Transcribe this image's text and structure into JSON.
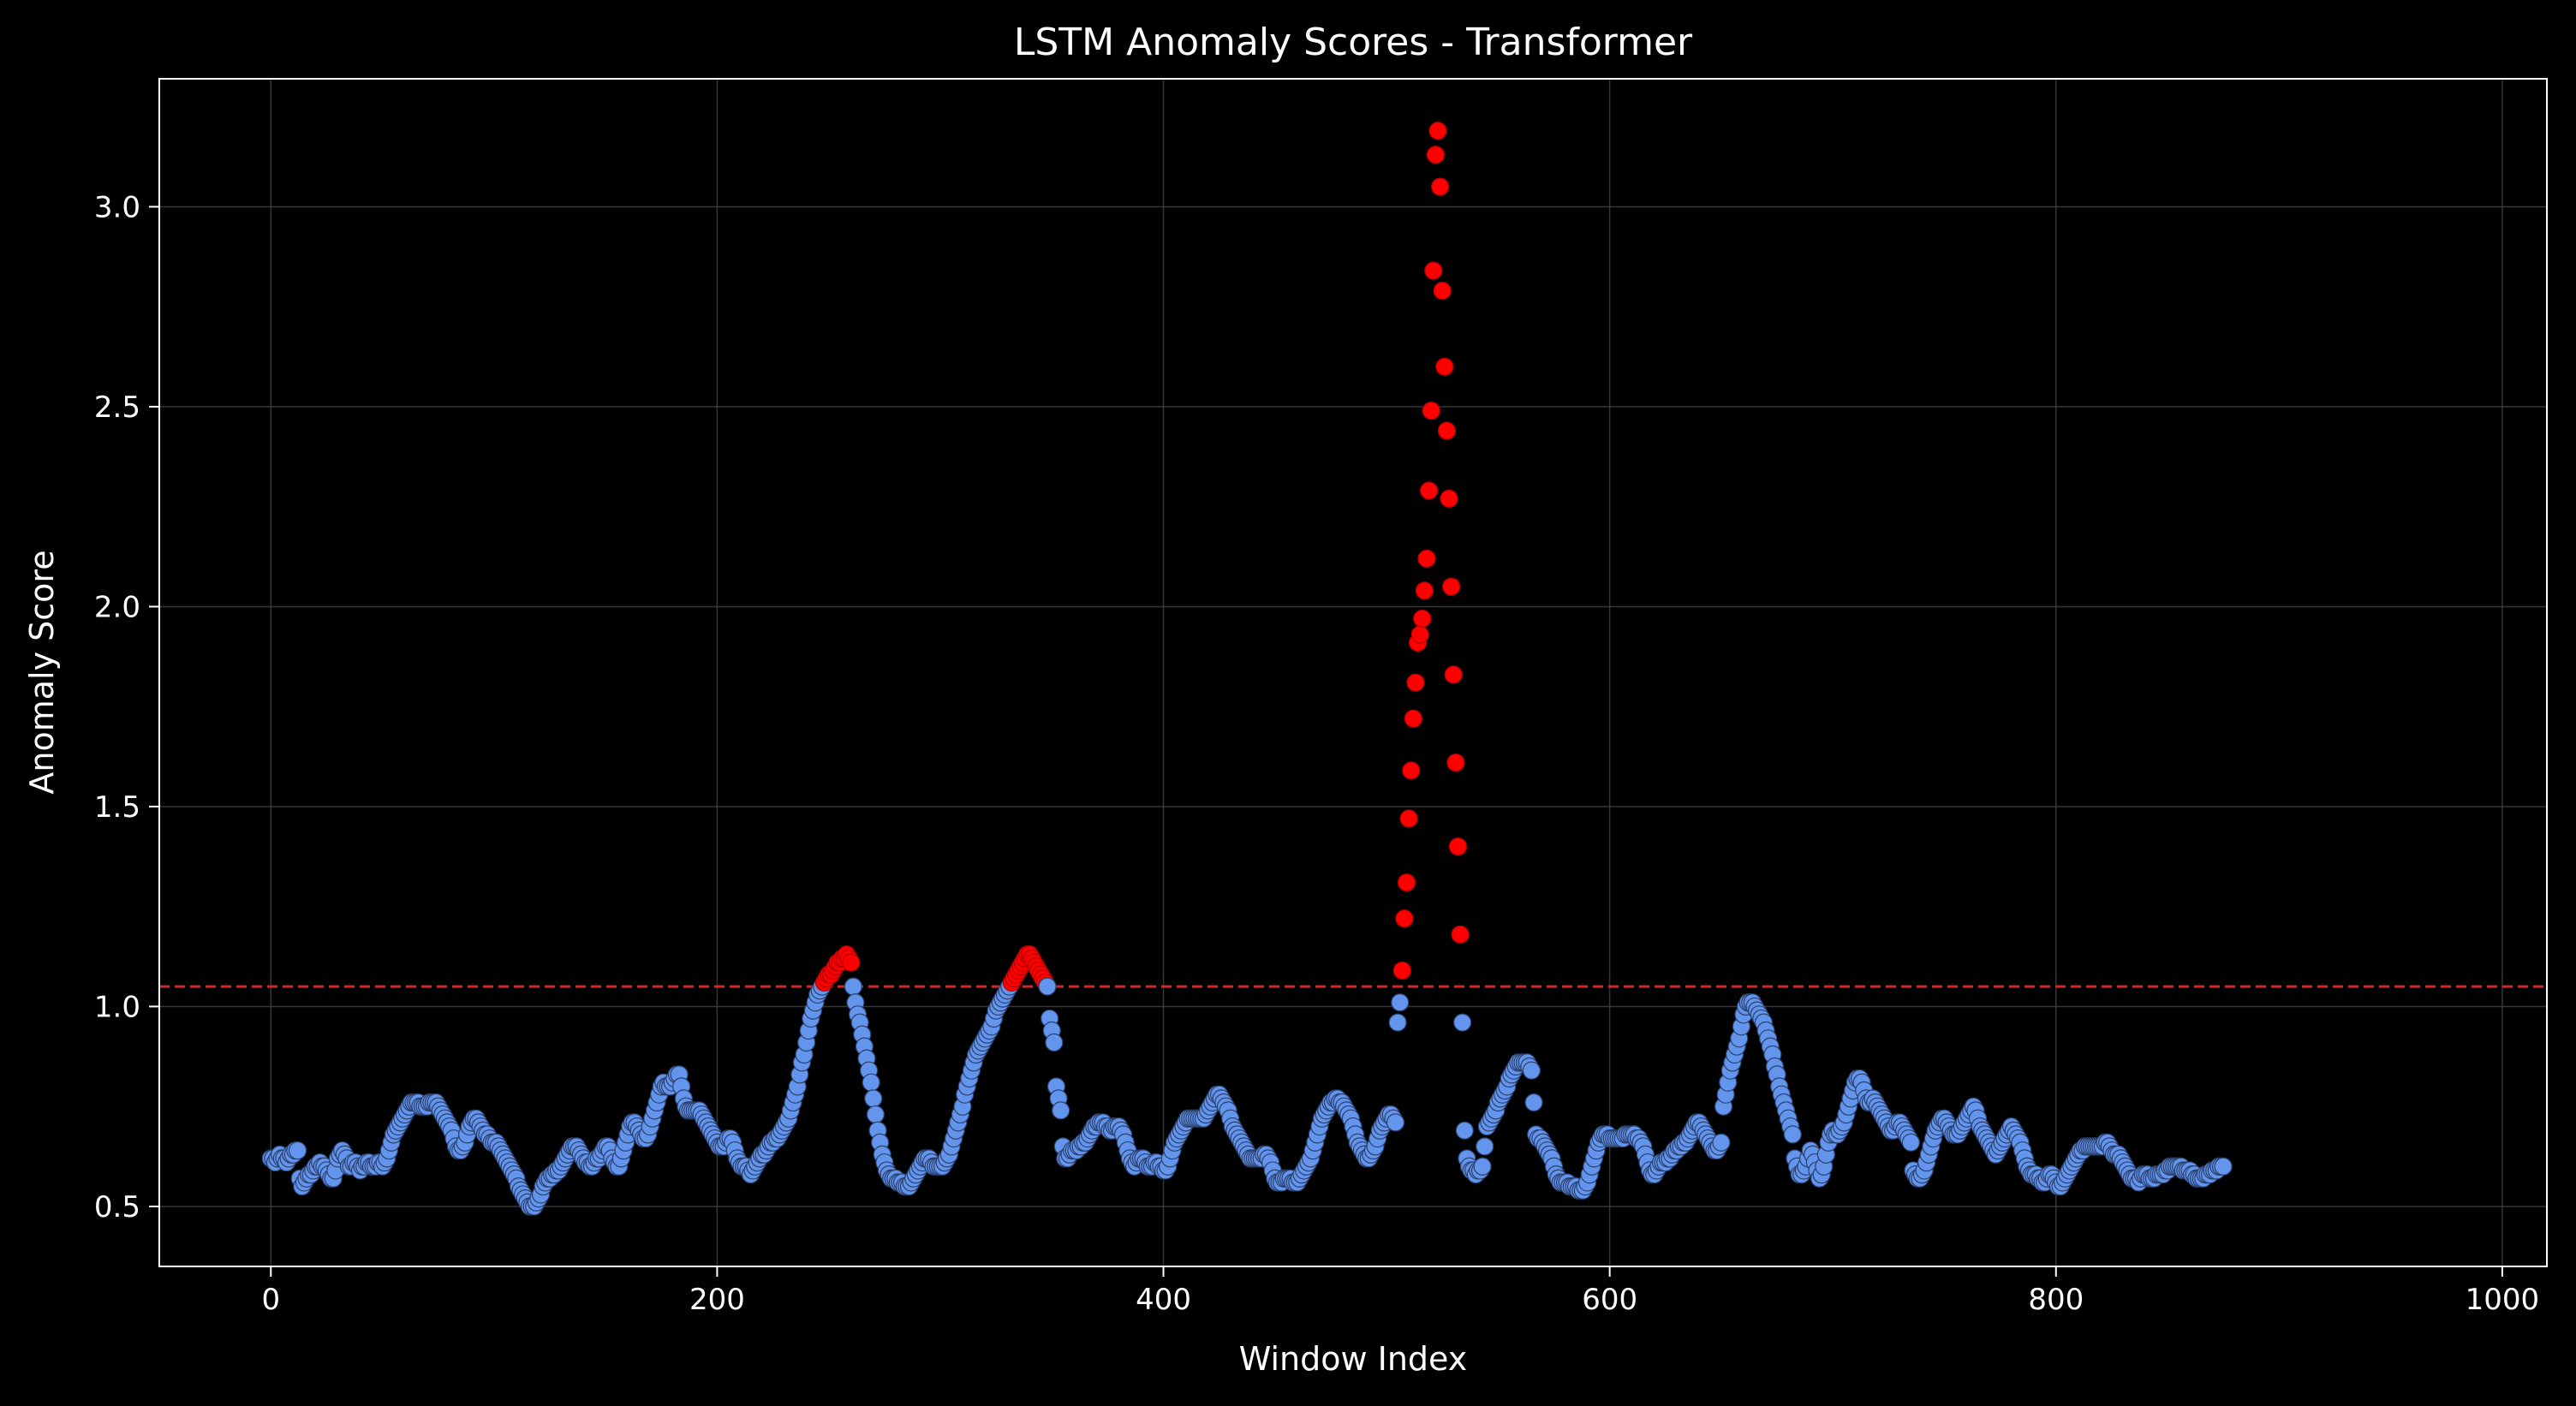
{
  "chart_data": {
    "type": "scatter",
    "title": "LSTM Anomaly Scores - Transformer",
    "xlabel": "Window Index",
    "ylabel": "Anomaly Score",
    "xlim": [
      -50,
      1020
    ],
    "ylim": [
      0.35,
      3.32
    ],
    "x_ticks": [
      0,
      200,
      400,
      600,
      800,
      1000
    ],
    "y_ticks": [
      0.5,
      1.0,
      1.5,
      2.0,
      2.5,
      3.0
    ],
    "grid": true,
    "threshold": 1.05,
    "colors": {
      "background": "#000000",
      "normal": "#6495ed",
      "anomaly": "#ff0000",
      "threshold_line": "#d62728",
      "axes": "#ffffff",
      "grid": "#444444"
    },
    "series": [
      {
        "values": [
          0.62,
          0.62,
          0.61,
          0.62,
          0.63,
          0.62,
          0.62,
          0.61,
          0.62,
          0.63,
          0.63,
          0.64,
          0.64,
          0.57,
          0.55,
          0.56,
          0.57,
          0.58,
          0.58,
          0.59,
          0.6,
          0.6,
          0.61,
          0.6,
          0.6,
          0.59,
          0.58,
          0.57,
          0.57,
          0.59,
          0.62,
          0.63,
          0.64,
          0.63,
          0.62,
          0.6,
          0.6,
          0.61,
          0.61,
          0.6,
          0.59,
          0.6,
          0.6,
          0.61,
          0.61,
          0.6,
          0.6,
          0.6,
          0.61,
          0.61,
          0.6,
          0.61,
          0.62,
          0.64,
          0.66,
          0.68,
          0.69,
          0.7,
          0.71,
          0.72,
          0.73,
          0.74,
          0.75,
          0.76,
          0.76,
          0.76,
          0.76,
          0.75,
          0.75,
          0.75,
          0.75,
          0.76,
          0.76,
          0.76,
          0.76,
          0.75,
          0.74,
          0.73,
          0.72,
          0.71,
          0.7,
          0.69,
          0.67,
          0.65,
          0.64,
          0.64,
          0.65,
          0.66,
          0.68,
          0.7,
          0.71,
          0.72,
          0.72,
          0.71,
          0.7,
          0.69,
          0.68,
          0.68,
          0.67,
          0.66,
          0.66,
          0.66,
          0.65,
          0.64,
          0.63,
          0.62,
          0.61,
          0.6,
          0.59,
          0.58,
          0.57,
          0.55,
          0.54,
          0.53,
          0.52,
          0.51,
          0.5,
          0.5,
          0.5,
          0.51,
          0.52,
          0.53,
          0.55,
          0.56,
          0.57,
          0.57,
          0.58,
          0.58,
          0.59,
          0.59,
          0.6,
          0.61,
          0.62,
          0.63,
          0.64,
          0.65,
          0.65,
          0.65,
          0.64,
          0.63,
          0.62,
          0.61,
          0.61,
          0.6,
          0.6,
          0.61,
          0.62,
          0.62,
          0.63,
          0.64,
          0.65,
          0.65,
          0.64,
          0.62,
          0.61,
          0.6,
          0.6,
          0.62,
          0.64,
          0.66,
          0.68,
          0.7,
          0.71,
          0.71,
          0.7,
          0.69,
          0.68,
          0.67,
          0.67,
          0.68,
          0.7,
          0.72,
          0.74,
          0.76,
          0.78,
          0.8,
          0.81,
          0.8,
          0.8,
          0.8,
          0.81,
          0.82,
          0.83,
          0.83,
          0.8,
          0.77,
          0.75,
          0.74,
          0.74,
          0.74,
          0.74,
          0.74,
          0.74,
          0.73,
          0.72,
          0.71,
          0.7,
          0.69,
          0.68,
          0.67,
          0.66,
          0.65,
          0.65,
          0.65,
          0.66,
          0.67,
          0.67,
          0.66,
          0.64,
          0.62,
          0.61,
          0.6,
          0.6,
          0.6,
          0.59,
          0.58,
          0.59,
          0.6,
          0.61,
          0.62,
          0.63,
          0.63,
          0.64,
          0.65,
          0.66,
          0.66,
          0.67,
          0.67,
          0.68,
          0.69,
          0.7,
          0.71,
          0.72,
          0.74,
          0.76,
          0.78,
          0.8,
          0.83,
          0.86,
          0.88,
          0.91,
          0.94,
          0.97,
          0.99,
          1.01,
          1.03,
          1.04,
          1.05,
          1.06,
          1.07,
          1.08,
          1.08,
          1.09,
          1.1,
          1.11,
          1.11,
          1.12,
          1.12,
          1.13,
          1.12,
          1.11,
          1.05,
          1.01,
          0.98,
          0.96,
          0.93,
          0.9,
          0.87,
          0.84,
          0.81,
          0.77,
          0.73,
          0.69,
          0.66,
          0.63,
          0.61,
          0.59,
          0.58,
          0.57,
          0.57,
          0.57,
          0.56,
          0.56,
          0.56,
          0.55,
          0.55,
          0.55,
          0.56,
          0.57,
          0.58,
          0.59,
          0.6,
          0.61,
          0.62,
          0.62,
          0.62,
          0.61,
          0.6,
          0.6,
          0.6,
          0.6,
          0.6,
          0.61,
          0.62,
          0.63,
          0.65,
          0.67,
          0.69,
          0.71,
          0.73,
          0.75,
          0.78,
          0.8,
          0.82,
          0.84,
          0.86,
          0.88,
          0.89,
          0.9,
          0.91,
          0.92,
          0.93,
          0.94,
          0.95,
          0.97,
          0.99,
          1.0,
          1.01,
          1.02,
          1.03,
          1.04,
          1.05,
          1.06,
          1.07,
          1.08,
          1.09,
          1.1,
          1.11,
          1.12,
          1.13,
          1.13,
          1.12,
          1.11,
          1.1,
          1.09,
          1.08,
          1.07,
          1.06,
          1.05,
          0.97,
          0.94,
          0.91,
          0.8,
          0.77,
          0.74,
          0.65,
          0.62,
          0.62,
          0.63,
          0.64,
          0.64,
          0.64,
          0.65,
          0.65,
          0.66,
          0.66,
          0.67,
          0.68,
          0.69,
          0.7,
          0.7,
          0.71,
          0.71,
          0.71,
          0.7,
          0.7,
          0.69,
          0.69,
          0.7,
          0.7,
          0.7,
          0.69,
          0.68,
          0.66,
          0.64,
          0.62,
          0.61,
          0.6,
          0.61,
          0.62,
          0.62,
          0.62,
          0.61,
          0.6,
          0.6,
          0.6,
          0.61,
          0.61,
          0.6,
          0.6,
          0.59,
          0.59,
          0.6,
          0.62,
          0.64,
          0.66,
          0.67,
          0.68,
          0.69,
          0.7,
          0.71,
          0.72,
          0.72,
          0.72,
          0.72,
          0.72,
          0.72,
          0.72,
          0.72,
          0.73,
          0.74,
          0.75,
          0.76,
          0.77,
          0.78,
          0.78,
          0.77,
          0.76,
          0.75,
          0.74,
          0.72,
          0.7,
          0.69,
          0.68,
          0.67,
          0.66,
          0.65,
          0.64,
          0.63,
          0.62,
          0.62,
          0.62,
          0.62,
          0.62,
          0.62,
          0.63,
          0.63,
          0.62,
          0.61,
          0.59,
          0.57,
          0.56,
          0.56,
          0.56,
          0.57,
          0.57,
          0.57,
          0.57,
          0.56,
          0.56,
          0.56,
          0.57,
          0.58,
          0.59,
          0.6,
          0.61,
          0.62,
          0.64,
          0.66,
          0.68,
          0.7,
          0.72,
          0.73,
          0.74,
          0.75,
          0.76,
          0.76,
          0.77,
          0.77,
          0.76,
          0.76,
          0.75,
          0.74,
          0.73,
          0.72,
          0.7,
          0.68,
          0.66,
          0.65,
          0.64,
          0.63,
          0.62,
          0.62,
          0.63,
          0.64,
          0.65,
          0.67,
          0.69,
          0.7,
          0.71,
          0.72,
          0.73,
          0.73,
          0.72,
          0.71,
          0.96,
          1.01,
          1.09,
          1.22,
          1.31,
          1.47,
          1.59,
          1.72,
          1.81,
          1.91,
          1.93,
          1.97,
          2.04,
          2.12,
          2.29,
          2.49,
          2.84,
          3.13,
          3.19,
          3.05,
          2.79,
          2.6,
          2.44,
          2.27,
          2.05,
          1.83,
          1.61,
          1.4,
          1.18,
          0.96,
          0.69,
          0.62,
          0.6,
          0.59,
          0.59,
          0.58,
          0.59,
          0.59,
          0.6,
          0.65,
          0.7,
          0.71,
          0.72,
          0.73,
          0.74,
          0.76,
          0.77,
          0.78,
          0.79,
          0.8,
          0.82,
          0.83,
          0.84,
          0.85,
          0.86,
          0.86,
          0.86,
          0.86,
          0.86,
          0.85,
          0.84,
          0.76,
          0.68,
          0.67,
          0.67,
          0.66,
          0.65,
          0.64,
          0.63,
          0.62,
          0.6,
          0.58,
          0.57,
          0.56,
          0.56,
          0.56,
          0.56,
          0.55,
          0.55,
          0.55,
          0.55,
          0.54,
          0.54,
          0.54,
          0.55,
          0.56,
          0.58,
          0.6,
          0.62,
          0.64,
          0.66,
          0.67,
          0.68,
          0.68,
          0.68,
          0.67,
          0.67,
          0.67,
          0.67,
          0.67,
          0.67,
          0.67,
          0.68,
          0.68,
          0.68,
          0.68,
          0.68,
          0.67,
          0.67,
          0.66,
          0.65,
          0.63,
          0.61,
          0.59,
          0.58,
          0.58,
          0.59,
          0.6,
          0.61,
          0.61,
          0.61,
          0.62,
          0.62,
          0.63,
          0.64,
          0.64,
          0.65,
          0.65,
          0.66,
          0.66,
          0.67,
          0.68,
          0.69,
          0.7,
          0.71,
          0.71,
          0.7,
          0.69,
          0.68,
          0.67,
          0.66,
          0.65,
          0.64,
          0.64,
          0.65,
          0.66,
          0.75,
          0.78,
          0.81,
          0.84,
          0.86,
          0.88,
          0.9,
          0.92,
          0.95,
          0.98,
          1.0,
          1.01,
          1.01,
          1.01,
          1.0,
          0.99,
          0.98,
          0.97,
          0.96,
          0.94,
          0.92,
          0.9,
          0.88,
          0.85,
          0.83,
          0.8,
          0.78,
          0.76,
          0.74,
          0.72,
          0.7,
          0.68,
          0.62,
          0.6,
          0.58,
          0.58,
          0.59,
          0.6,
          0.62,
          0.64,
          0.63,
          0.61,
          0.59,
          0.57,
          0.58,
          0.6,
          0.63,
          0.66,
          0.68,
          0.69,
          0.68,
          0.68,
          0.69,
          0.7,
          0.71,
          0.73,
          0.75,
          0.77,
          0.79,
          0.81,
          0.82,
          0.82,
          0.81,
          0.79,
          0.77,
          0.76,
          0.76,
          0.77,
          0.76,
          0.75,
          0.74,
          0.73,
          0.72,
          0.71,
          0.7,
          0.69,
          0.69,
          0.7,
          0.71,
          0.71,
          0.7,
          0.69,
          0.68,
          0.67,
          0.66,
          0.59,
          0.58,
          0.57,
          0.57,
          0.58,
          0.59,
          0.61,
          0.63,
          0.65,
          0.67,
          0.69,
          0.7,
          0.71,
          0.72,
          0.72,
          0.71,
          0.7,
          0.69,
          0.68,
          0.68,
          0.68,
          0.69,
          0.7,
          0.71,
          0.72,
          0.73,
          0.74,
          0.75,
          0.74,
          0.72,
          0.7,
          0.69,
          0.68,
          0.67,
          0.66,
          0.65,
          0.64,
          0.63,
          0.64,
          0.65,
          0.66,
          0.67,
          0.68,
          0.69,
          0.7,
          0.69,
          0.68,
          0.67,
          0.66,
          0.64,
          0.62,
          0.6,
          0.59,
          0.58,
          0.58,
          0.58,
          0.57,
          0.57,
          0.56,
          0.56,
          0.57,
          0.58,
          0.58,
          0.57,
          0.56,
          0.55,
          0.55,
          0.56,
          0.57,
          0.58,
          0.59,
          0.6,
          0.61,
          0.62,
          0.63,
          0.64,
          0.64,
          0.65,
          0.65,
          0.65,
          0.65,
          0.65,
          0.65,
          0.65,
          0.65,
          0.65,
          0.66,
          0.66,
          0.65,
          0.64,
          0.63,
          0.63,
          0.63,
          0.62,
          0.61,
          0.6,
          0.59,
          0.58,
          0.57,
          0.57,
          0.57,
          0.56,
          0.57,
          0.58,
          0.58,
          0.58,
          0.57,
          0.57,
          0.57,
          0.58,
          0.58,
          0.58,
          0.58,
          0.59,
          0.59,
          0.6,
          0.6,
          0.6,
          0.6,
          0.6,
          0.6,
          0.59,
          0.59,
          0.59,
          0.59,
          0.58,
          0.58,
          0.57,
          0.57,
          0.57,
          0.57,
          0.58,
          0.58,
          0.58,
          0.59,
          0.59,
          0.59,
          0.6,
          0.6,
          0.6
        ]
      }
    ]
  }
}
